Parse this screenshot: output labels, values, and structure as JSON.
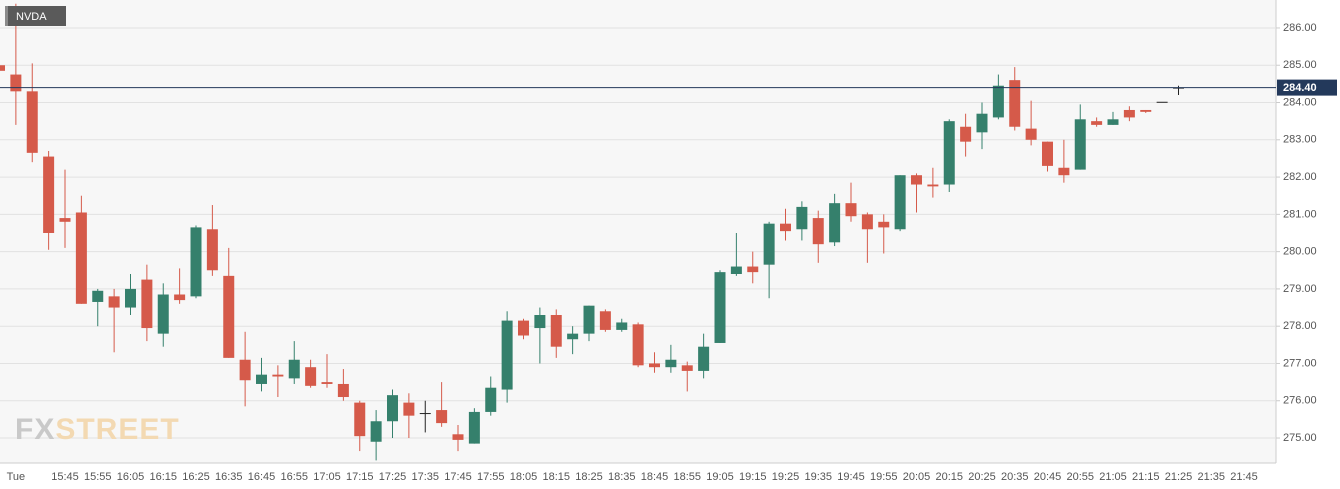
{
  "chart_data": {
    "type": "candlestick",
    "symbol": "NVDA",
    "watermark": {
      "prefix": "FX",
      "suffix": "STREET"
    },
    "categories": [
      null,
      "Tue",
      null,
      null,
      "15:45",
      null,
      "15:55",
      null,
      "16:05",
      null,
      "16:15",
      null,
      "16:25",
      null,
      "16:35",
      null,
      "16:45",
      null,
      "16:55",
      null,
      "17:05",
      null,
      "17:15",
      null,
      "17:25",
      null,
      "17:35",
      null,
      "17:45",
      null,
      "17:55",
      null,
      "18:05",
      null,
      "18:15",
      null,
      "18:25",
      null,
      "18:35",
      null,
      "18:45",
      null,
      "18:55",
      null,
      "19:05",
      null,
      "19:15",
      null,
      "19:25",
      null,
      "19:35",
      null,
      "19:45",
      null,
      "19:55",
      null,
      "20:05",
      null,
      "20:15",
      null,
      "20:25",
      null,
      "20:35",
      null,
      "20:45",
      null,
      "20:55",
      null,
      "21:05",
      null,
      "21:15",
      null,
      "21:25",
      null,
      "21:35",
      null,
      "21:45"
    ],
    "open": [
      285.0,
      284.75,
      284.3,
      282.55,
      280.9,
      281.05,
      278.65,
      278.8,
      278.5,
      279.25,
      277.8,
      278.85,
      278.8,
      280.6,
      279.35,
      277.1,
      276.45,
      276.7,
      276.6,
      276.9,
      276.5,
      276.45,
      275.95,
      274.9,
      275.45,
      275.95,
      275.67,
      275.75,
      275.1,
      274.85,
      275.7,
      276.3,
      278.15,
      277.95,
      278.3,
      277.65,
      277.8,
      278.4,
      277.9,
      278.05,
      277.0,
      276.9,
      276.95,
      276.8,
      277.55,
      279.4,
      279.6,
      279.65,
      280.75,
      280.6,
      280.9,
      280.25,
      281.3,
      281.0,
      280.8,
      280.6,
      282.05,
      281.8,
      281.8,
      283.35,
      283.2,
      283.6,
      284.6,
      283.3,
      282.95,
      282.25,
      282.2,
      283.5,
      283.4,
      283.8,
      283.8,
      284.02,
      284.4,
      null,
      null,
      null,
      null
    ],
    "high": [
      286.5,
      286.65,
      285.05,
      282.7,
      282.2,
      281.5,
      279.0,
      279.0,
      279.4,
      279.65,
      279.15,
      279.55,
      280.7,
      281.25,
      280.1,
      277.85,
      277.15,
      276.95,
      277.6,
      277.1,
      277.25,
      276.85,
      276.0,
      275.75,
      276.3,
      276.2,
      276.0,
      276.5,
      275.35,
      275.8,
      276.65,
      278.4,
      278.2,
      278.5,
      278.45,
      278.0,
      278.55,
      278.45,
      278.2,
      278.1,
      277.3,
      277.5,
      277.05,
      277.8,
      279.5,
      280.5,
      280.0,
      280.8,
      281.15,
      281.35,
      281.1,
      281.55,
      281.85,
      281.05,
      281.0,
      282.05,
      282.1,
      282.25,
      283.55,
      283.7,
      284.0,
      284.75,
      284.95,
      284.05,
      282.95,
      283.0,
      283.95,
      283.6,
      283.75,
      283.9,
      283.8,
      284.02,
      284.45,
      null,
      null,
      null,
      null
    ],
    "low": [
      283.85,
      283.4,
      282.4,
      280.05,
      280.1,
      278.6,
      278.0,
      277.3,
      278.3,
      277.6,
      277.45,
      278.6,
      278.75,
      279.35,
      277.15,
      275.85,
      276.25,
      276.1,
      276.45,
      276.35,
      276.35,
      276.0,
      274.65,
      274.4,
      275.0,
      275.0,
      275.15,
      275.3,
      274.65,
      274.85,
      275.6,
      275.95,
      277.65,
      277.0,
      277.15,
      277.25,
      277.6,
      277.85,
      277.85,
      276.9,
      276.75,
      276.75,
      276.25,
      276.6,
      277.55,
      279.35,
      279.15,
      278.75,
      280.3,
      280.3,
      279.7,
      280.15,
      280.8,
      279.7,
      279.95,
      280.55,
      281.05,
      281.45,
      281.6,
      282.55,
      282.75,
      283.55,
      283.25,
      282.85,
      282.15,
      281.85,
      282.2,
      283.35,
      283.4,
      283.5,
      283.72,
      284.02,
      284.2,
      null,
      null,
      null,
      null
    ],
    "close": [
      284.85,
      284.3,
      282.65,
      280.5,
      280.8,
      278.6,
      278.95,
      278.5,
      279.0,
      277.95,
      278.85,
      278.7,
      280.65,
      279.5,
      277.15,
      276.55,
      276.7,
      276.65,
      277.1,
      276.4,
      276.45,
      276.1,
      275.05,
      275.45,
      276.15,
      275.6,
      275.67,
      275.4,
      274.95,
      275.7,
      276.35,
      278.15,
      277.75,
      278.3,
      277.45,
      277.8,
      278.55,
      277.9,
      278.1,
      276.95,
      276.9,
      277.1,
      276.8,
      277.45,
      279.45,
      279.6,
      279.45,
      280.75,
      280.55,
      281.2,
      280.2,
      281.3,
      280.95,
      280.6,
      280.65,
      282.05,
      281.8,
      281.75,
      283.5,
      282.95,
      283.7,
      284.45,
      283.35,
      283.0,
      282.3,
      282.05,
      283.55,
      283.4,
      283.55,
      283.6,
      283.75,
      284.02,
      284.4,
      null,
      null,
      null,
      null
    ],
    "up_color": "#35806c",
    "down_color": "#d55a4a",
    "flat_color": "#222222",
    "last_price": {
      "value": 284.4,
      "label": "284.40"
    },
    "last_price_color": "#23395b",
    "ylim": [
      274.33,
      286.75
    ],
    "yticks": [
      {
        "value": 275,
        "label": "275.00"
      },
      {
        "value": 276,
        "label": "276.00"
      },
      {
        "value": 277,
        "label": "277.00"
      },
      {
        "value": 278,
        "label": "278.00"
      },
      {
        "value": 279,
        "label": "279.00"
      },
      {
        "value": 280,
        "label": "280.00"
      },
      {
        "value": 281,
        "label": "281.00"
      },
      {
        "value": 282,
        "label": "282.00"
      },
      {
        "value": 283,
        "label": "283.00"
      },
      {
        "value": 284,
        "label": "284.00"
      },
      {
        "value": 285,
        "label": "285.00"
      },
      {
        "value": 286,
        "label": "286.00"
      }
    ],
    "grid": true
  }
}
